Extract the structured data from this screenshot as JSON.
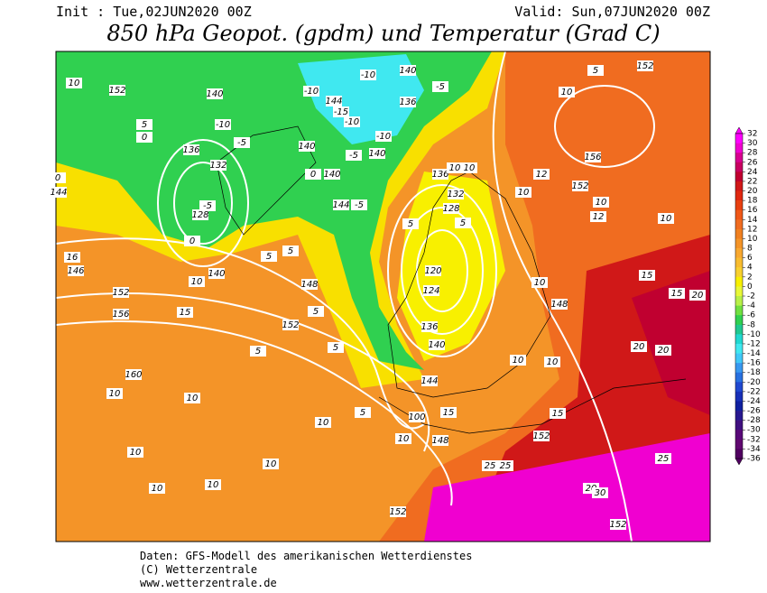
{
  "header": {
    "init": "Init : Tue,02JUN2020 00Z",
    "valid": "Valid: Sun,07JUN2020 00Z",
    "title": "850 hPa Geopot. (gpdm) und Temperatur (Grad C)"
  },
  "colorbar": {
    "ticks": [
      32,
      30,
      28,
      26,
      24,
      22,
      20,
      18,
      16,
      14,
      12,
      10,
      8,
      6,
      4,
      2,
      0,
      -2,
      -4,
      -6,
      -8,
      -10,
      -12,
      -14,
      -16,
      -18,
      -20,
      -22,
      -24,
      -26,
      -28,
      -30,
      -32,
      -34,
      -36
    ],
    "colors": [
      "#ff00ff",
      "#f000d0",
      "#d80090",
      "#c80060",
      "#c00030",
      "#d01818",
      "#e02810",
      "#e84010",
      "#f05818",
      "#f06c20",
      "#f08020",
      "#f49428",
      "#f8a830",
      "#f8bc30",
      "#f8d030",
      "#f8f000",
      "#e8f838",
      "#b8f048",
      "#70e040",
      "#30d050",
      "#20c890",
      "#20d8d0",
      "#40e8f0",
      "#40c8f8",
      "#3898f0",
      "#2870e0",
      "#2048d0",
      "#1830b8",
      "#1020a0",
      "#281890",
      "#401080",
      "#580878",
      "#600870",
      "#500060"
    ]
  },
  "map_labels": [
    "10",
    "152",
    "140",
    "144",
    "-15",
    "-10",
    "-10",
    "136",
    "-5",
    "140",
    "-10",
    "-10",
    "-5",
    "-10",
    "5",
    "0",
    "136",
    "132",
    "140",
    "-5",
    "-5",
    "128",
    "0",
    "140",
    "0",
    "140",
    "144",
    "-5",
    "144",
    "0",
    "146",
    "16",
    "152",
    "156",
    "140",
    "10",
    "5",
    "5",
    "148",
    "152",
    "5",
    "5",
    "5",
    "15",
    "160",
    "10",
    "10",
    "10",
    "10",
    "10",
    "10",
    "10",
    "5",
    "10",
    "100",
    "148",
    "15",
    "144",
    "140",
    "136",
    "124",
    "120",
    "128",
    "132",
    "136",
    "10",
    "10",
    "5",
    "5",
    "10",
    "148",
    "10",
    "12",
    "152",
    "156",
    "10",
    "5",
    "152",
    "10",
    "12",
    "10",
    "15",
    "15",
    "20",
    "20",
    "20",
    "10",
    "10",
    "15",
    "152",
    "25",
    "25",
    "25",
    "20",
    "30",
    "152",
    "152"
  ],
  "footer": {
    "source": "Daten: GFS-Modell des amerikanischen Wetterdienstes",
    "copyright": "(C) Wetterzentrale",
    "url": "www.wetterzentrale.de"
  }
}
